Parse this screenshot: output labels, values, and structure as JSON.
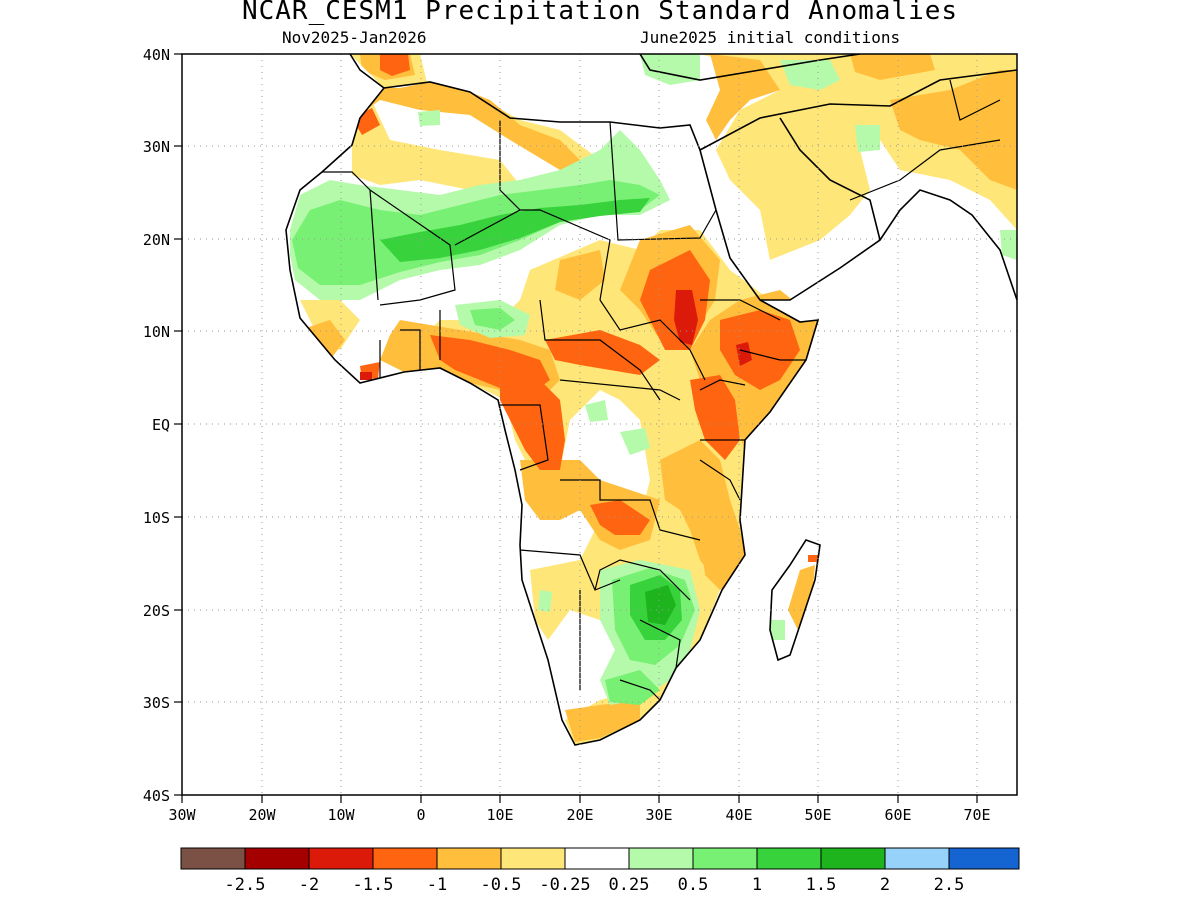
{
  "header": {
    "title": "NCAR_CESM1 Precipitation Standard Anomalies",
    "period": "Nov2025-Jan2026",
    "init": "June2025 initial conditions"
  },
  "axes": {
    "lon_ticks": [
      "30W",
      "20W",
      "10W",
      "0",
      "10E",
      "20E",
      "30E",
      "40E",
      "50E",
      "60E",
      "70E"
    ],
    "lat_ticks": [
      "40N",
      "30N",
      "20N",
      "10N",
      "EQ",
      "10S",
      "20S",
      "30S",
      "40S"
    ]
  },
  "legend": {
    "colors": [
      "#7b5045",
      "#a50000",
      "#dc1a0a",
      "#ff6410",
      "#ffbe3c",
      "#ffe678",
      "#ffffff",
      "#b4faaa",
      "#78f073",
      "#37d23c",
      "#1eb41e",
      "#96d2fa",
      "#1464d2"
    ],
    "labels": [
      "-2.5",
      "-2",
      "-1.5",
      "-1",
      "-0.5",
      "-0.25",
      "0.25",
      "0.5",
      "1",
      "1.5",
      "2",
      "2.5"
    ]
  },
  "colors": {
    "coast": "#000000",
    "grid": "#9a9a9a"
  }
}
